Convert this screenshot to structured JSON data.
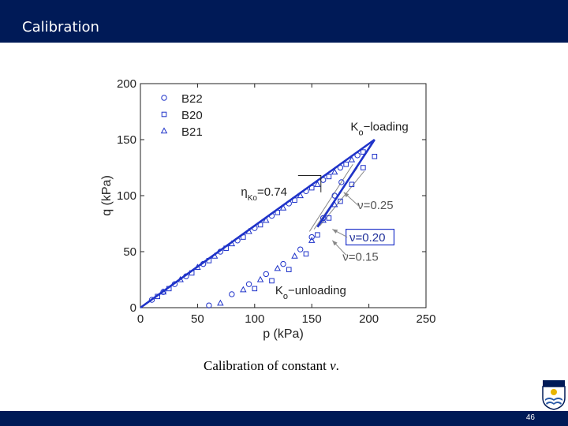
{
  "slide": {
    "title": "Calibration",
    "page_number": "46",
    "caption": "Calibration of constant ",
    "caption_symbol": "ν",
    "caption_end": ".",
    "accent_color": "#001a57"
  },
  "chart_data": {
    "type": "scatter",
    "xlabel": "p (kPa)",
    "ylabel": "q (kPa)",
    "xlim": [
      0,
      250
    ],
    "ylim": [
      0,
      200
    ],
    "x_ticks": [
      "0",
      "50",
      "100",
      "150",
      "200",
      "250"
    ],
    "y_ticks": [
      "0",
      "50",
      "100",
      "150",
      "200"
    ],
    "legend_position": "top-left",
    "legend": [
      {
        "name": "B22",
        "marker": "circle"
      },
      {
        "name": "B20",
        "marker": "square"
      },
      {
        "name": "B21",
        "marker": "triangle"
      }
    ],
    "series": [
      {
        "name": "B22",
        "marker": "circle",
        "x": [
          10,
          20,
          30,
          40,
          55,
          70,
          85,
          100,
          115,
          130,
          145,
          160,
          175,
          190,
          60,
          80,
          95,
          110,
          125,
          140,
          150,
          160,
          170,
          176
        ],
        "y": [
          7,
          14,
          21,
          28,
          39,
          50,
          60,
          71,
          82,
          93,
          104,
          114,
          125,
          136,
          2,
          12,
          21,
          30,
          39,
          52,
          63,
          80,
          100,
          112
        ]
      },
      {
        "name": "B20",
        "marker": "square",
        "x": [
          15,
          25,
          45,
          60,
          75,
          90,
          105,
          120,
          135,
          150,
          165,
          180,
          195,
          205,
          100,
          115,
          130,
          145,
          155,
          165,
          175,
          185,
          195
        ],
        "y": [
          10,
          17,
          31,
          42,
          53,
          63,
          74,
          85,
          96,
          107,
          117,
          128,
          139,
          135,
          17,
          24,
          34,
          48,
          65,
          80,
          95,
          110,
          125
        ]
      },
      {
        "name": "B21",
        "marker": "triangle",
        "x": [
          20,
          35,
          50,
          65,
          80,
          95,
          110,
          125,
          140,
          155,
          170,
          185,
          70,
          90,
          105,
          120,
          135,
          150,
          160,
          170
        ],
        "y": [
          14,
          25,
          36,
          46,
          57,
          68,
          78,
          89,
          100,
          110,
          121,
          132,
          4,
          16,
          25,
          35,
          46,
          60,
          78,
          92
        ]
      }
    ],
    "model_lines": [
      {
        "name": "Ko-loading",
        "x": [
          0,
          205
        ],
        "y": [
          0,
          150
        ]
      },
      {
        "name": "Ko-unloading",
        "x": [
          155,
          205
        ],
        "y": [
          72,
          150
        ]
      }
    ],
    "annotations": {
      "ko_loading_main": "K",
      "ko_loading_sub": "o",
      "ko_loading_rest": "−loading",
      "ko_unloading_main": "K",
      "ko_unloading_sub": "o",
      "ko_unloading_rest": "−unloading",
      "eta_main": "η",
      "eta_sub": "Ko",
      "eta_rest": "=0.74",
      "nu_025": "ν=0.25",
      "nu_020": "ν=0.20",
      "nu_015": "ν=0.15"
    }
  }
}
